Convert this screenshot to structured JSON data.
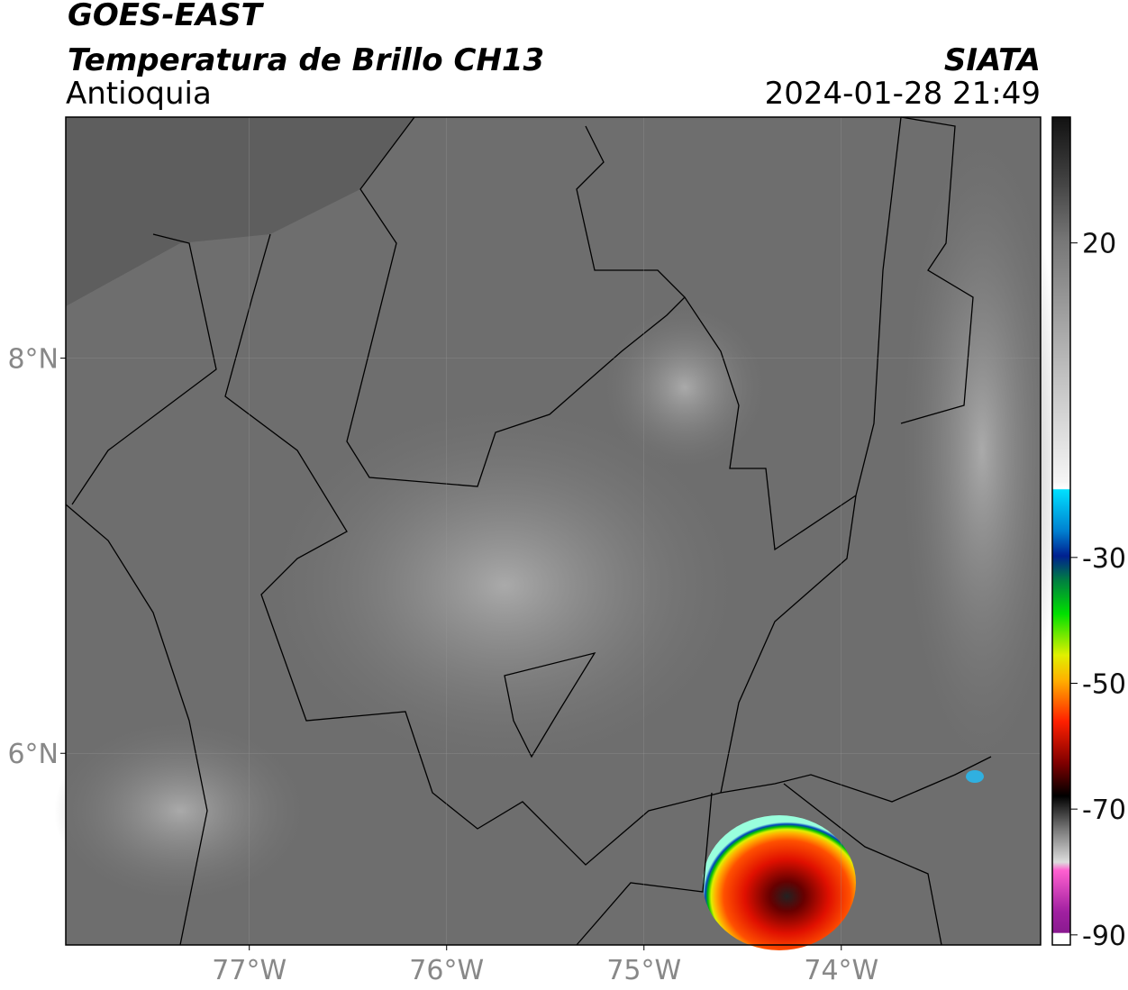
{
  "header": {
    "title": "GOES-EAST",
    "subtitle": "Temperatura de Brillo CH13",
    "region": "Antioquia",
    "source": "SIATA",
    "datetime": "2024-01-28 21:49"
  },
  "map": {
    "xlim": [
      -77.93,
      -72.99
    ],
    "ylim": [
      5.03,
      9.22
    ],
    "xticks": [
      {
        "value": -77,
        "label": "77°W"
      },
      {
        "value": -76,
        "label": "76°W"
      },
      {
        "value": -75,
        "label": "75°W"
      },
      {
        "value": -74,
        "label": "74°W"
      }
    ],
    "yticks": [
      {
        "value": 8,
        "label": "8°N"
      },
      {
        "value": 6,
        "label": "6°N"
      }
    ],
    "grid": true
  },
  "colorbar": {
    "lim": [
      -91.6,
      40
    ],
    "ticks": [
      20,
      -30,
      -50,
      -70,
      -90
    ]
  }
}
